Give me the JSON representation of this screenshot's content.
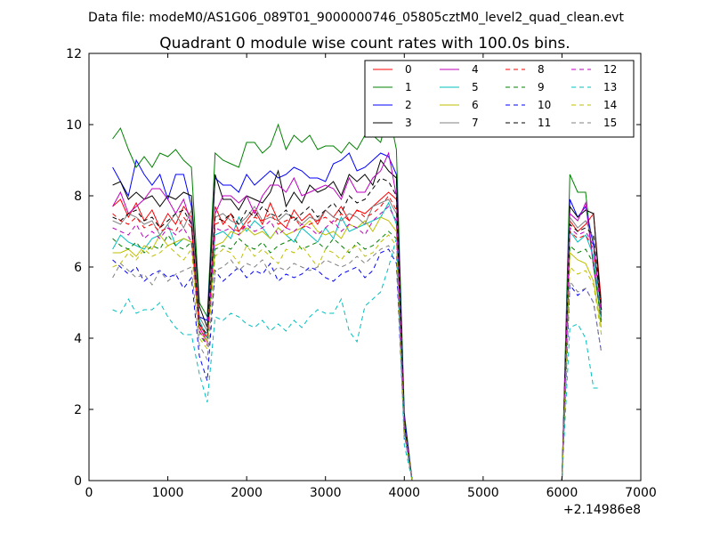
{
  "suptitle": "Data file: modeM0/AS1G06_089T01_9000000746_05805cztM0_level2_quad_clean.evt",
  "chart_data": {
    "type": "line",
    "title": "Quadrant 0 module wise count rates with 100.0s bins.",
    "xlabel": "",
    "ylabel": "",
    "x_offset_label": "+2.14986e8",
    "xlim": [
      0,
      7000
    ],
    "ylim": [
      0,
      12
    ],
    "xticks": [
      0,
      1000,
      2000,
      3000,
      4000,
      5000,
      6000,
      7000
    ],
    "yticks": [
      0,
      2,
      4,
      6,
      8,
      10,
      12
    ],
    "legend_position": "top-right",
    "x": [
      300,
      400,
      500,
      600,
      700,
      800,
      900,
      1000,
      1100,
      1200,
      1300,
      1400,
      1500,
      1600,
      1700,
      1800,
      1900,
      2000,
      2100,
      2200,
      2300,
      2400,
      2500,
      2600,
      2700,
      2800,
      2900,
      3000,
      3100,
      3200,
      3300,
      3400,
      3500,
      3600,
      3700,
      3800,
      3900,
      4000,
      4100,
      4200,
      4300,
      4400,
      4500,
      4600,
      4700,
      4800,
      4900,
      5000,
      5100,
      5200,
      5300,
      5400,
      5500,
      5600,
      5700,
      5800,
      5900,
      6000,
      6100,
      6200,
      6300,
      6400,
      6500
    ],
    "series": [
      {
        "name": "0",
        "color": "#ff0000",
        "dash": "solid",
        "values": [
          7.7,
          7.9,
          7.4,
          7.8,
          7.3,
          7.6,
          7.1,
          7.5,
          7.2,
          7.7,
          7.4,
          4.4,
          4.0,
          7.7,
          7.2,
          7.5,
          7.0,
          7.3,
          7.6,
          7.2,
          7.8,
          7.3,
          7.1,
          7.6,
          7.3,
          7.5,
          7.2,
          7.6,
          7.4,
          7.7,
          7.3,
          7.6,
          7.5,
          7.7,
          7.9,
          8.1,
          7.9,
          1.7,
          0,
          0,
          0,
          0,
          0,
          0,
          0,
          0,
          0,
          0,
          0,
          0,
          0,
          0,
          0,
          0,
          0,
          0,
          0,
          0,
          7.3,
          7.0,
          7.2,
          7.5,
          5.0
        ]
      },
      {
        "name": "1",
        "color": "#008000",
        "dash": "solid",
        "values": [
          9.6,
          9.9,
          9.3,
          8.8,
          9.1,
          8.8,
          9.2,
          9.1,
          9.3,
          9.0,
          8.8,
          5.0,
          4.6,
          9.2,
          9.0,
          8.9,
          8.8,
          9.5,
          9.5,
          9.2,
          9.4,
          10.0,
          9.3,
          9.7,
          9.5,
          9.7,
          9.3,
          9.4,
          9.4,
          9.2,
          9.5,
          9.3,
          9.7,
          9.7,
          9.5,
          10.4,
          9.3,
          1.9,
          0,
          0,
          0,
          0,
          0,
          0,
          0,
          0,
          0,
          0,
          0,
          0,
          0,
          0,
          0,
          0,
          0,
          0,
          0,
          0,
          8.6,
          8.1,
          8.1,
          6.0,
          4.5
        ]
      },
      {
        "name": "2",
        "color": "#0000ff",
        "dash": "solid",
        "values": [
          8.8,
          8.4,
          8.0,
          9.0,
          8.6,
          8.3,
          8.6,
          7.9,
          8.6,
          8.6,
          7.7,
          4.6,
          4.5,
          8.5,
          8.3,
          8.3,
          8.1,
          8.6,
          8.3,
          8.5,
          8.7,
          8.5,
          8.6,
          8.8,
          8.7,
          8.5,
          8.5,
          8.4,
          8.9,
          9.0,
          9.2,
          8.7,
          8.8,
          9.0,
          9.2,
          9.1,
          8.6,
          1.8,
          0,
          0,
          0,
          0,
          0,
          0,
          0,
          0,
          0,
          0,
          0,
          0,
          0,
          0,
          0,
          0,
          0,
          0,
          0,
          0,
          7.9,
          7.4,
          7.7,
          6.6,
          4.8
        ]
      },
      {
        "name": "3",
        "color": "#000000",
        "dash": "solid",
        "values": [
          8.3,
          8.4,
          7.9,
          8.1,
          7.9,
          8.0,
          7.7,
          8.0,
          7.9,
          8.1,
          8.0,
          4.9,
          4.3,
          8.6,
          7.9,
          7.9,
          7.6,
          8.0,
          7.9,
          7.8,
          8.1,
          8.7,
          7.7,
          8.1,
          7.8,
          8.3,
          8.1,
          8.2,
          8.4,
          8.0,
          8.6,
          8.4,
          8.6,
          8.3,
          9.0,
          8.7,
          8.5,
          1.6,
          0,
          0,
          0,
          0,
          0,
          0,
          0,
          0,
          0,
          0,
          0,
          0,
          0,
          0,
          0,
          0,
          0,
          0,
          0,
          0,
          7.7,
          7.4,
          7.6,
          7.5,
          4.8
        ]
      },
      {
        "name": "4",
        "color": "#bf00bf",
        "dash": "solid",
        "values": [
          7.7,
          8.1,
          7.5,
          7.7,
          7.9,
          8.2,
          8.2,
          7.9,
          7.5,
          7.9,
          7.2,
          4.3,
          3.9,
          7.5,
          8.0,
          8.0,
          7.8,
          8.0,
          7.5,
          8.0,
          8.3,
          8.3,
          8.1,
          8.5,
          8.0,
          8.1,
          8.2,
          8.3,
          8.2,
          7.9,
          8.5,
          8.1,
          8.1,
          8.5,
          8.7,
          9.2,
          8.0,
          1.5,
          0,
          0,
          0,
          0,
          0,
          0,
          0,
          0,
          0,
          0,
          0,
          0,
          0,
          0,
          0,
          0,
          0,
          0,
          0,
          0,
          7.5,
          7.3,
          7.8,
          6.0,
          4.6
        ]
      },
      {
        "name": "5",
        "color": "#00bfbf",
        "dash": "solid",
        "values": [
          6.5,
          6.9,
          6.7,
          6.6,
          6.5,
          6.8,
          6.9,
          7.2,
          6.6,
          6.8,
          6.7,
          4.5,
          4.0,
          6.9,
          7.0,
          6.8,
          7.4,
          7.0,
          7.3,
          7.1,
          6.8,
          7.1,
          6.9,
          6.7,
          7.1,
          6.9,
          6.7,
          7.1,
          6.8,
          7.4,
          7.0,
          7.1,
          7.2,
          7.3,
          7.4,
          7.8,
          7.2,
          1.5,
          0,
          0,
          0,
          0,
          0,
          0,
          0,
          0,
          0,
          0,
          0,
          0,
          0,
          0,
          0,
          0,
          0,
          0,
          0,
          0,
          7.0,
          6.7,
          6.9,
          6.3,
          4.5
        ]
      },
      {
        "name": "6",
        "color": "#bfbf00",
        "dash": "solid",
        "values": [
          6.4,
          6.4,
          6.5,
          6.3,
          6.6,
          6.5,
          6.9,
          6.6,
          6.7,
          6.8,
          6.7,
          4.2,
          3.9,
          6.6,
          6.7,
          7.0,
          6.9,
          7.1,
          6.9,
          7.0,
          6.8,
          7.1,
          6.9,
          7.0,
          7.1,
          7.3,
          7.0,
          6.9,
          7.0,
          6.8,
          7.2,
          7.1,
          7.3,
          7.0,
          7.4,
          7.3,
          7.0,
          1.4,
          0,
          0,
          0,
          0,
          0,
          0,
          0,
          0,
          0,
          0,
          0,
          0,
          0,
          0,
          0,
          0,
          0,
          0,
          0,
          0,
          6.4,
          6.2,
          6.1,
          5.6,
          4.3
        ]
      },
      {
        "name": "7",
        "color": "#808080",
        "dash": "solid",
        "values": [
          7.3,
          7.2,
          7.5,
          7.4,
          7.2,
          7.3,
          6.9,
          7.2,
          7.5,
          7.1,
          7.6,
          4.6,
          4.2,
          7.4,
          7.5,
          7.3,
          7.2,
          7.4,
          7.7,
          7.3,
          7.4,
          7.3,
          7.5,
          7.4,
          7.2,
          7.4,
          7.3,
          7.6,
          7.4,
          7.3,
          7.5,
          7.4,
          7.2,
          7.7,
          7.8,
          7.9,
          7.5,
          1.6,
          0,
          0,
          0,
          0,
          0,
          0,
          0,
          0,
          0,
          0,
          0,
          0,
          0,
          0,
          0,
          0,
          0,
          0,
          0,
          0,
          7.4,
          7.1,
          7.3,
          6.8,
          4.7
        ]
      },
      {
        "name": "8",
        "color": "#ff0000",
        "dash": "dashed",
        "values": [
          7.5,
          7.3,
          7.2,
          7.4,
          7.1,
          7.2,
          7.0,
          7.1,
          7.0,
          7.4,
          7.1,
          4.3,
          4.0,
          7.2,
          7.3,
          7.1,
          7.0,
          7.2,
          7.4,
          7.3,
          7.5,
          7.2,
          7.3,
          7.4,
          7.1,
          7.2,
          7.3,
          7.4,
          7.2,
          7.5,
          7.3,
          7.6,
          7.4,
          7.5,
          7.7,
          8.0,
          7.6,
          1.6,
          0,
          0,
          0,
          0,
          0,
          0,
          0,
          0,
          0,
          0,
          0,
          0,
          0,
          0,
          0,
          0,
          0,
          0,
          0,
          0,
          7.0,
          6.8,
          6.9,
          6.5,
          4.9
        ]
      },
      {
        "name": "9",
        "color": "#008000",
        "dash": "dashed",
        "values": [
          6.8,
          6.6,
          6.5,
          6.7,
          6.4,
          6.6,
          6.5,
          6.9,
          6.6,
          6.5,
          6.7,
          4.1,
          3.8,
          6.5,
          6.6,
          6.5,
          6.8,
          6.6,
          6.5,
          6.7,
          6.4,
          6.6,
          6.7,
          6.8,
          6.5,
          6.6,
          6.7,
          6.5,
          6.8,
          6.6,
          6.4,
          6.7,
          6.5,
          6.6,
          6.8,
          7.0,
          6.8,
          1.5,
          0,
          0,
          0,
          0,
          0,
          0,
          0,
          0,
          0,
          0,
          0,
          0,
          0,
          0,
          0,
          0,
          0,
          0,
          0,
          0,
          6.6,
          6.4,
          6.5,
          6.1,
          4.4
        ]
      },
      {
        "name": "10",
        "color": "#0000ff",
        "dash": "dashed",
        "values": [
          6.2,
          6.0,
          5.8,
          6.0,
          5.6,
          5.8,
          5.9,
          5.7,
          5.8,
          5.4,
          5.7,
          3.5,
          2.8,
          5.9,
          5.6,
          5.8,
          6.0,
          5.7,
          5.9,
          5.8,
          6.1,
          5.6,
          5.8,
          5.7,
          5.8,
          6.0,
          5.9,
          5.7,
          5.6,
          5.8,
          5.9,
          6.0,
          5.7,
          5.9,
          6.4,
          6.5,
          6.1,
          1.3,
          0,
          0,
          0,
          0,
          0,
          0,
          0,
          0,
          0,
          0,
          0,
          0,
          0,
          0,
          0,
          0,
          0,
          0,
          0,
          0,
          5.5,
          5.2,
          5.4,
          5.0,
          3.6
        ]
      },
      {
        "name": "11",
        "color": "#000000",
        "dash": "dashed",
        "values": [
          7.4,
          7.3,
          7.5,
          7.6,
          7.3,
          7.4,
          7.1,
          7.3,
          7.5,
          7.6,
          7.2,
          4.4,
          4.1,
          7.4,
          7.3,
          7.5,
          7.2,
          7.6,
          7.4,
          7.7,
          7.5,
          7.4,
          7.6,
          7.3,
          7.5,
          7.7,
          7.4,
          7.6,
          7.8,
          7.5,
          8.0,
          7.8,
          7.9,
          8.2,
          8.5,
          8.4,
          8.0,
          1.6,
          0,
          0,
          0,
          0,
          0,
          0,
          0,
          0,
          0,
          0,
          0,
          0,
          0,
          0,
          0,
          0,
          0,
          0,
          0,
          0,
          7.2,
          7.0,
          7.1,
          6.9,
          4.8
        ]
      },
      {
        "name": "12",
        "color": "#bf00bf",
        "dash": "dashed",
        "values": [
          7.1,
          7.0,
          6.9,
          7.2,
          6.8,
          7.0,
          6.8,
          7.1,
          6.9,
          7.1,
          6.7,
          4.2,
          3.8,
          7.1,
          7.0,
          7.1,
          6.9,
          7.2,
          7.0,
          7.1,
          7.3,
          6.9,
          7.1,
          7.0,
          7.2,
          7.1,
          6.9,
          7.1,
          7.3,
          7.0,
          7.2,
          7.1,
          6.9,
          7.3,
          7.5,
          7.7,
          7.3,
          1.5,
          0,
          0,
          0,
          0,
          0,
          0,
          0,
          0,
          0,
          0,
          0,
          0,
          0,
          0,
          0,
          0,
          0,
          0,
          0,
          0,
          7.1,
          6.9,
          7.0,
          6.6,
          4.6
        ]
      },
      {
        "name": "13",
        "color": "#00bfbf",
        "dash": "dashed",
        "values": [
          4.8,
          4.7,
          5.1,
          4.7,
          4.8,
          4.8,
          5.0,
          4.6,
          4.3,
          4.1,
          4.1,
          3.0,
          2.2,
          4.6,
          4.5,
          4.7,
          4.6,
          4.4,
          4.3,
          4.5,
          4.2,
          4.4,
          4.2,
          4.5,
          4.3,
          4.6,
          4.8,
          4.7,
          4.7,
          5.1,
          4.2,
          3.9,
          4.9,
          5.1,
          5.3,
          6.0,
          6.8,
          1.0,
          0,
          0,
          0,
          0,
          0,
          0,
          0,
          0,
          0,
          0,
          0,
          0,
          0,
          0,
          0,
          0,
          0,
          0,
          0,
          0,
          4.3,
          4.4,
          4.0,
          2.6,
          2.6
        ]
      },
      {
        "name": "14",
        "color": "#bfbf00",
        "dash": "dashed",
        "values": [
          6.0,
          6.1,
          6.4,
          6.2,
          6.5,
          6.3,
          6.4,
          6.6,
          6.4,
          6.2,
          6.5,
          4.0,
          3.7,
          6.3,
          6.5,
          6.4,
          6.1,
          6.6,
          6.3,
          6.5,
          6.3,
          6.1,
          6.5,
          6.4,
          6.6,
          6.3,
          6.0,
          6.5,
          6.4,
          6.2,
          6.5,
          6.6,
          6.3,
          6.4,
          6.7,
          6.9,
          6.6,
          1.4,
          0,
          0,
          0,
          0,
          0,
          0,
          0,
          0,
          0,
          0,
          0,
          0,
          0,
          0,
          0,
          0,
          0,
          0,
          0,
          0,
          6.0,
          5.8,
          5.9,
          5.5,
          4.1
        ]
      },
      {
        "name": "15",
        "color": "#808080",
        "dash": "dashed",
        "values": [
          5.7,
          6.1,
          5.9,
          5.7,
          5.8,
          5.5,
          5.9,
          5.6,
          5.8,
          5.9,
          6.0,
          3.8,
          3.4,
          5.9,
          6.0,
          6.2,
          5.9,
          6.1,
          6.0,
          6.2,
          5.8,
          6.0,
          5.9,
          6.1,
          6.0,
          5.9,
          6.0,
          6.2,
          6.1,
          6.0,
          6.1,
          6.3,
          6.1,
          6.3,
          6.5,
          6.6,
          6.3,
          1.3,
          0,
          0,
          0,
          0,
          0,
          0,
          0,
          0,
          0,
          0,
          0,
          0,
          0,
          0,
          0,
          0,
          0,
          0,
          0,
          0,
          5.6,
          5.3,
          5.4,
          5.0,
          3.6
        ]
      }
    ]
  }
}
